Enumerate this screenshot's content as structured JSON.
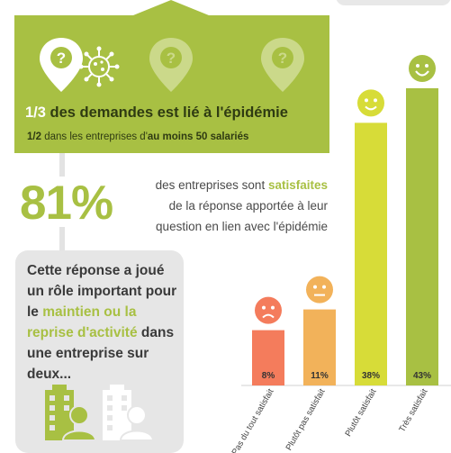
{
  "header": {
    "headline_strong": "1/3",
    "headline_rest": " des demandes est lié à l'épidémie",
    "sub_fraction": "1/2",
    "sub_middle": " dans les entreprises d'",
    "sub_strong": "au moins 50 salariés"
  },
  "satisfaction": {
    "big_percent": "81%",
    "line1_prefix": "des entreprises sont ",
    "line1_highlight": "satisfaites",
    "line2": "de la réponse apportée à leur",
    "line3": "question en lien avec l'épidémie"
  },
  "impact": {
    "part1": "Cette réponse a joué un rôle important pour le ",
    "highlight": "maintien ou la reprise d'activité",
    "part2": " dans une entreprise sur deux..."
  },
  "colors": {
    "brand_green": "#a8c043",
    "bar_pas_du_tout": "#f47c5c",
    "bar_plutot_pas": "#f2b25a",
    "bar_plutot": "#d7dc38",
    "bar_tres": "#a8c043",
    "face_sad": "#f47c5c",
    "face_neutral": "#f2b25a",
    "face_smile": "#d7dc38",
    "face_happy": "#a8c043"
  },
  "icons": {
    "pins": [
      "question-pin-virus-icon",
      "question-pin-icon",
      "question-pin-icon"
    ],
    "buildings": [
      "building-person-icon",
      "building-person-icon"
    ],
    "faces": [
      "sad-face-icon",
      "neutral-face-icon",
      "smile-face-icon",
      "happy-face-icon"
    ]
  },
  "chart_data": {
    "type": "bar",
    "categories": [
      "Pas du tout satisfait",
      "Plutôt pas satisfait",
      "Plutôt satisfait",
      "Très satisfait"
    ],
    "values": [
      8,
      11,
      38,
      43
    ],
    "labels": [
      "8%",
      "11%",
      "38%",
      "43%"
    ],
    "ylim": [
      0,
      43
    ],
    "ylabel": "",
    "xlabel": ""
  }
}
